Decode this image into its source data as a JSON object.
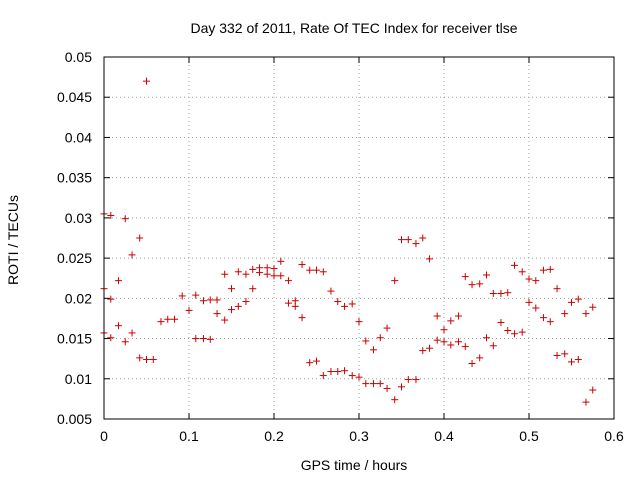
{
  "chart_data": {
    "type": "scatter",
    "title": "Day 332 of 2011, Rate Of TEC Index for receiver tlse",
    "xlabel": "GPS time / hours",
    "ylabel": "ROTI / TECUs",
    "xlim": [
      0,
      0.6
    ],
    "ylim": [
      0.005,
      0.05
    ],
    "xticks": [
      "0",
      "0.1",
      "0.2",
      "0.3",
      "0.4",
      "0.5",
      "0.6"
    ],
    "yticks": [
      "0.005",
      "0.01",
      "0.015",
      "0.02",
      "0.025",
      "0.03",
      "0.035",
      "0.04",
      "0.045",
      "0.05"
    ],
    "grid": true,
    "marker": "+",
    "series": [
      {
        "name": "ROTI",
        "color": "#cc0000",
        "points": [
          [
            0.0,
            0.0305
          ],
          [
            0.0,
            0.0212
          ],
          [
            0.0,
            0.0157
          ],
          [
            0.008,
            0.0303
          ],
          [
            0.008,
            0.0199
          ],
          [
            0.008,
            0.0151
          ],
          [
            0.017,
            0.0222
          ],
          [
            0.017,
            0.0166
          ],
          [
            0.025,
            0.0299
          ],
          [
            0.025,
            0.0146
          ],
          [
            0.033,
            0.0254
          ],
          [
            0.033,
            0.0157
          ],
          [
            0.042,
            0.0275
          ],
          [
            0.042,
            0.0126
          ],
          [
            0.05,
            0.047
          ],
          [
            0.05,
            0.0124
          ],
          [
            0.058,
            0.0124
          ],
          [
            0.067,
            0.0171
          ],
          [
            0.075,
            0.0174
          ],
          [
            0.083,
            0.0174
          ],
          [
            0.092,
            0.0203
          ],
          [
            0.1,
            0.0185
          ],
          [
            0.108,
            0.0204
          ],
          [
            0.108,
            0.015
          ],
          [
            0.117,
            0.0197
          ],
          [
            0.117,
            0.015
          ],
          [
            0.125,
            0.0198
          ],
          [
            0.125,
            0.0149
          ],
          [
            0.133,
            0.0198
          ],
          [
            0.133,
            0.0181
          ],
          [
            0.142,
            0.023
          ],
          [
            0.142,
            0.0173
          ],
          [
            0.15,
            0.0212
          ],
          [
            0.15,
            0.0186
          ],
          [
            0.158,
            0.0233
          ],
          [
            0.158,
            0.019
          ],
          [
            0.167,
            0.023
          ],
          [
            0.167,
            0.0196
          ],
          [
            0.175,
            0.0236
          ],
          [
            0.175,
            0.0212
          ],
          [
            0.183,
            0.0238
          ],
          [
            0.183,
            0.0232
          ],
          [
            0.192,
            0.0238
          ],
          [
            0.192,
            0.023
          ],
          [
            0.2,
            0.0237
          ],
          [
            0.2,
            0.0228
          ],
          [
            0.208,
            0.0246
          ],
          [
            0.208,
            0.0228
          ],
          [
            0.217,
            0.0222
          ],
          [
            0.217,
            0.0194
          ],
          [
            0.225,
            0.0197
          ],
          [
            0.225,
            0.019
          ],
          [
            0.233,
            0.0242
          ],
          [
            0.233,
            0.0176
          ],
          [
            0.242,
            0.0235
          ],
          [
            0.242,
            0.012
          ],
          [
            0.25,
            0.0235
          ],
          [
            0.25,
            0.0122
          ],
          [
            0.258,
            0.0233
          ],
          [
            0.258,
            0.0104
          ],
          [
            0.267,
            0.0209
          ],
          [
            0.267,
            0.0109
          ],
          [
            0.275,
            0.0196
          ],
          [
            0.275,
            0.0109
          ],
          [
            0.283,
            0.019
          ],
          [
            0.283,
            0.011
          ],
          [
            0.292,
            0.0193
          ],
          [
            0.292,
            0.0104
          ],
          [
            0.3,
            0.0171
          ],
          [
            0.3,
            0.0102
          ],
          [
            0.308,
            0.0147
          ],
          [
            0.308,
            0.0094
          ],
          [
            0.317,
            0.0136
          ],
          [
            0.317,
            0.0094
          ],
          [
            0.325,
            0.0151
          ],
          [
            0.325,
            0.0094
          ],
          [
            0.333,
            0.0163
          ],
          [
            0.333,
            0.0088
          ],
          [
            0.342,
            0.0222
          ],
          [
            0.342,
            0.0074
          ],
          [
            0.35,
            0.0273
          ],
          [
            0.35,
            0.009
          ],
          [
            0.358,
            0.0273
          ],
          [
            0.358,
            0.0099
          ],
          [
            0.367,
            0.0268
          ],
          [
            0.367,
            0.0099
          ],
          [
            0.375,
            0.0275
          ],
          [
            0.375,
            0.0135
          ],
          [
            0.383,
            0.0249
          ],
          [
            0.383,
            0.0138
          ],
          [
            0.392,
            0.0178
          ],
          [
            0.392,
            0.0148
          ],
          [
            0.4,
            0.0161
          ],
          [
            0.4,
            0.0146
          ],
          [
            0.408,
            0.0172
          ],
          [
            0.408,
            0.0142
          ],
          [
            0.417,
            0.0178
          ],
          [
            0.417,
            0.0146
          ],
          [
            0.425,
            0.0227
          ],
          [
            0.425,
            0.014
          ],
          [
            0.433,
            0.0217
          ],
          [
            0.433,
            0.0119
          ],
          [
            0.442,
            0.0218
          ],
          [
            0.442,
            0.0126
          ],
          [
            0.45,
            0.0229
          ],
          [
            0.45,
            0.0151
          ],
          [
            0.458,
            0.0206
          ],
          [
            0.458,
            0.0141
          ],
          [
            0.467,
            0.0206
          ],
          [
            0.467,
            0.017
          ],
          [
            0.475,
            0.0207
          ],
          [
            0.475,
            0.016
          ],
          [
            0.483,
            0.0241
          ],
          [
            0.483,
            0.0156
          ],
          [
            0.492,
            0.0233
          ],
          [
            0.492,
            0.0158
          ],
          [
            0.5,
            0.0224
          ],
          [
            0.5,
            0.0195
          ],
          [
            0.508,
            0.0222
          ],
          [
            0.508,
            0.0188
          ],
          [
            0.517,
            0.0235
          ],
          [
            0.517,
            0.0176
          ],
          [
            0.525,
            0.0236
          ],
          [
            0.525,
            0.0171
          ],
          [
            0.533,
            0.0212
          ],
          [
            0.533,
            0.0129
          ],
          [
            0.542,
            0.0181
          ],
          [
            0.542,
            0.0131
          ],
          [
            0.55,
            0.0195
          ],
          [
            0.55,
            0.0121
          ],
          [
            0.558,
            0.0199
          ],
          [
            0.558,
            0.0124
          ],
          [
            0.567,
            0.0181
          ],
          [
            0.567,
            0.0071
          ],
          [
            0.575,
            0.0189
          ],
          [
            0.575,
            0.0086
          ]
        ]
      }
    ]
  }
}
